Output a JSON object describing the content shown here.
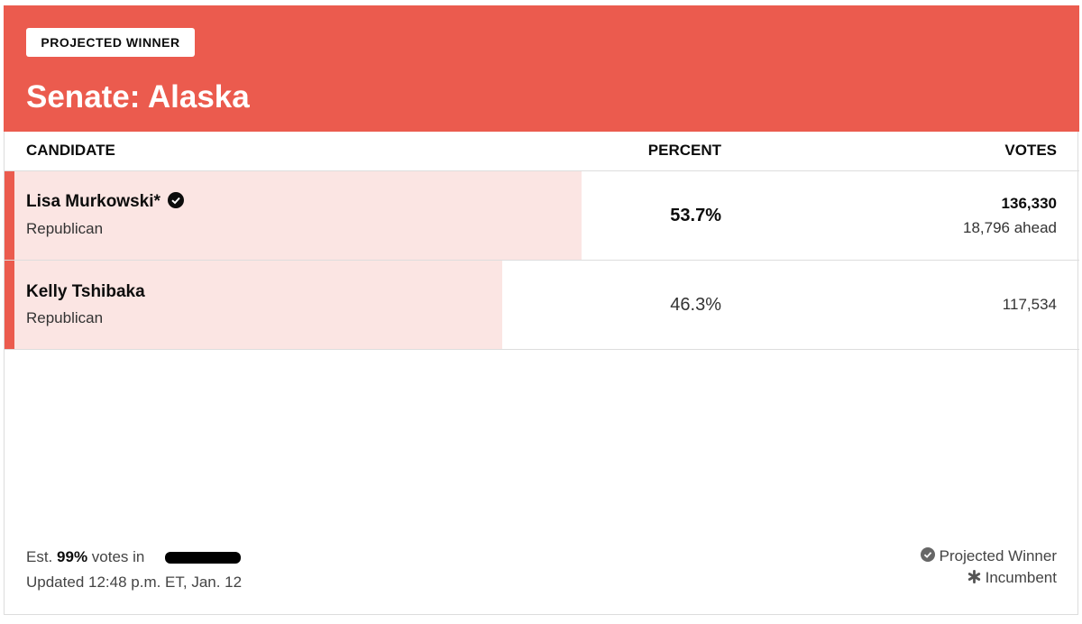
{
  "header": {
    "badge": "PROJECTED WINNER",
    "title": "Senate: Alaska"
  },
  "table": {
    "columns": [
      "CANDIDATE",
      "PERCENT",
      "VOTES"
    ],
    "rows": [
      {
        "name": "Lisa Murkowski*",
        "party": "Republican",
        "percent": 53.7,
        "percent_label": "53.7%",
        "votes": "136,330",
        "margin": "18,796 ahead"
      },
      {
        "name": "Kelly Tshibaka",
        "party": "Republican",
        "percent": 46.3,
        "percent_label": "46.3%",
        "votes": "117,534"
      }
    ]
  },
  "footer": {
    "est_prefix": "Est.",
    "est_value": "99%",
    "est_suffix": "votes in",
    "updated": "Updated 12:48 p.m. ET, Jan. 12",
    "legend": [
      "Projected Winner",
      "Incumbent"
    ]
  }
}
